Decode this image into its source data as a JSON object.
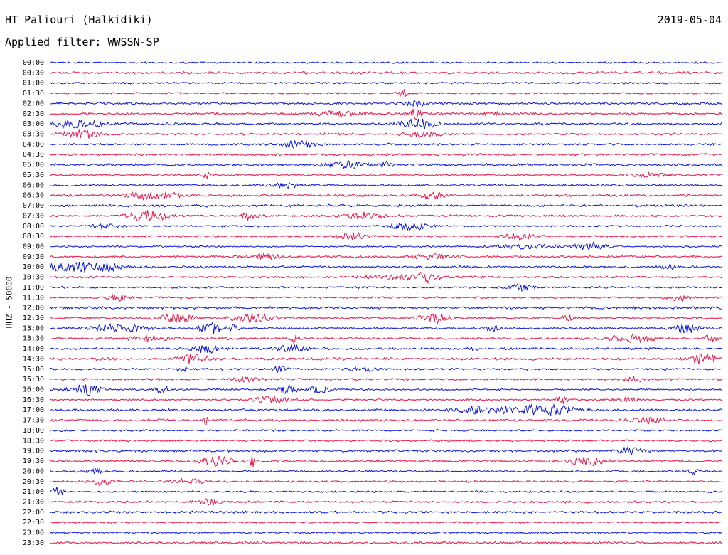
{
  "header": {
    "station": "HT Paliouri (Halkidiki)",
    "date": "2019-05-04",
    "filter": "Applied filter: WWSSN-SP"
  },
  "channel_label": "HHZ - 50000",
  "colors": {
    "odd_trace": "#0a14e6",
    "even_trace": "#f0134a",
    "background": "#ffffff"
  },
  "chart_data": {
    "type": "line",
    "title": "HT Paliouri (Halkidiki)",
    "subtitle": "Applied filter: WWSSN-SP",
    "ylabel": "HHZ - 50000",
    "xlabel": "",
    "categories": [
      "00:00",
      "00:30",
      "01:00",
      "01:30",
      "02:00",
      "02:30",
      "03:00",
      "03:30",
      "04:00",
      "04:30",
      "05:00",
      "05:30",
      "06:00",
      "06:30",
      "07:00",
      "07:30",
      "08:00",
      "08:30",
      "09:00",
      "09:30",
      "10:00",
      "10:30",
      "11:00",
      "11:30",
      "12:00",
      "12:30",
      "13:00",
      "13:30",
      "14:00",
      "14:30",
      "15:00",
      "15:30",
      "16:00",
      "16:30",
      "17:00",
      "17:30",
      "18:00",
      "18:30",
      "19:00",
      "19:30",
      "20:00",
      "20:30",
      "21:00",
      "21:30",
      "22:00",
      "22:30",
      "23:00",
      "23:30"
    ],
    "series": [],
    "grid": false
  }
}
